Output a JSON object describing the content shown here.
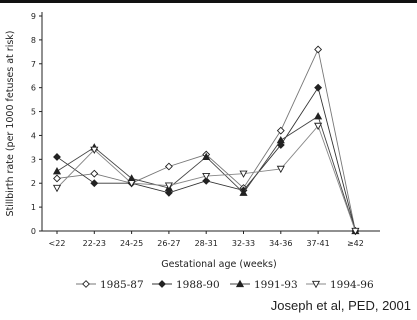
{
  "chart_data": {
    "type": "line",
    "xlabel": "Gestational age (weeks)",
    "ylabel": "Stillbirth rate (per 1000 fetuses at risk)",
    "categories": [
      "<22",
      "22-23",
      "24-25",
      "26-27",
      "28-31",
      "32-33",
      "34-36",
      "37-41",
      "≥42"
    ],
    "ylim": [
      0,
      9
    ],
    "yticks": [
      0,
      1,
      2,
      3,
      4,
      5,
      6,
      7,
      8,
      9
    ],
    "grid": false,
    "legend_position": "bottom",
    "series": [
      {
        "name": "1985-87",
        "marker": "diamond-open",
        "values": [
          2.2,
          2.4,
          2.0,
          2.7,
          3.2,
          1.8,
          4.2,
          7.6,
          0.0
        ]
      },
      {
        "name": "1988-90",
        "marker": "diamond-filled",
        "values": [
          3.1,
          2.0,
          2.0,
          1.6,
          2.1,
          1.7,
          3.6,
          6.0,
          0.0
        ]
      },
      {
        "name": "1991-93",
        "marker": "triangle-up",
        "values": [
          2.5,
          3.5,
          2.2,
          1.8,
          3.1,
          1.6,
          3.8,
          4.8,
          0.0
        ]
      },
      {
        "name": "1994-96",
        "marker": "triangle-down",
        "values": [
          1.8,
          3.4,
          2.0,
          1.9,
          2.3,
          2.4,
          2.6,
          4.4,
          0.0
        ]
      }
    ]
  },
  "citation": "Joseph et al, PED, 2001"
}
